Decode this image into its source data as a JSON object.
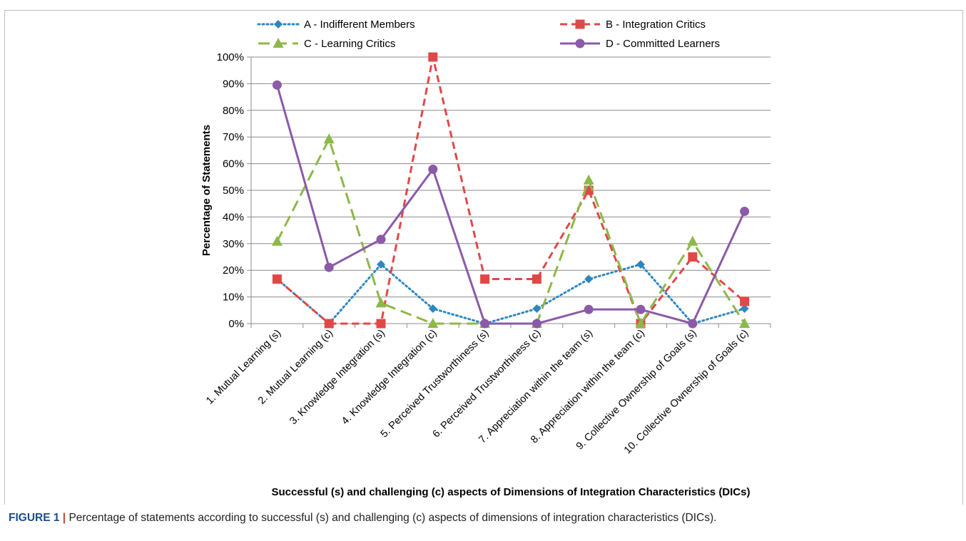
{
  "chart_data": {
    "type": "line",
    "xlabel": "Successful (s) and challenging (c) aspects of Dimensions of Integration Characteristics (DICs)",
    "ylabel": "Percentage of Statements",
    "ylim": [
      0,
      100
    ],
    "yticks": [
      "0%",
      "10%",
      "20%",
      "30%",
      "40%",
      "50%",
      "60%",
      "70%",
      "80%",
      "90%",
      "100%"
    ],
    "grid": true,
    "legend_position": "top",
    "categories": [
      "1. Mutual Learning (s)",
      "2. Mutual Learning (c)",
      "3. Knowledge Integration (s)",
      "4. Knowledge Integration (c)",
      "5. Perceived Trustworthiness (s)",
      "6. Perceived Trustworthiness (c)",
      "7. Appreciation within the team (s)",
      "8. Appreciation within the team (c)",
      "9. Collective Ownership of Goals (s)",
      "10. Collective Ownership of Goals (c)"
    ],
    "series": [
      {
        "name": "A - Indifferent Members",
        "color": "#2e86c1",
        "line": "dotted",
        "marker": "diamond",
        "values": [
          16.7,
          0,
          22.2,
          5.6,
          0,
          5.6,
          16.7,
          22.2,
          0,
          5.6
        ]
      },
      {
        "name": "B - Integration Critics",
        "color": "#e04848",
        "line": "dashed",
        "marker": "square",
        "values": [
          16.7,
          0,
          0,
          100,
          16.7,
          16.7,
          50,
          0,
          25,
          8.3
        ]
      },
      {
        "name": "C - Learning Critics",
        "color": "#8db84a",
        "line": "longdash",
        "marker": "triangle",
        "values": [
          30.8,
          69.2,
          7.7,
          0,
          0,
          0,
          53.8,
          0,
          30.8,
          0
        ]
      },
      {
        "name": "D - Committed Learners",
        "color": "#8b5aa8",
        "line": "solid",
        "marker": "circle",
        "values": [
          89.5,
          21.1,
          31.6,
          57.9,
          0,
          0,
          5.3,
          5.3,
          0,
          42.1
        ]
      }
    ]
  },
  "caption": {
    "label": "FIGURE 1",
    "separator": " | ",
    "text": "Percentage of statements according to successful (s) and challenging (c) aspects of dimensions of integration characteristics (DICs)."
  }
}
